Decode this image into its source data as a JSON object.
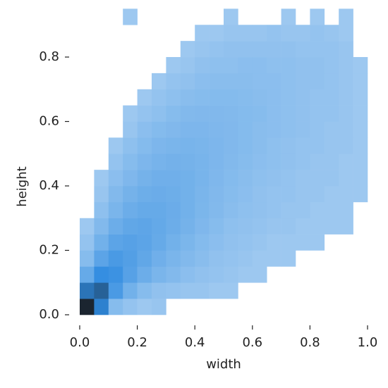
{
  "chart_data": {
    "type": "hist2d",
    "x_label": "width",
    "y_label": "height",
    "xbins": [
      0,
      0.05,
      0.1,
      0.15,
      0.2,
      0.25,
      0.3,
      0.35,
      0.4,
      0.45,
      0.5,
      0.55,
      0.6,
      0.65,
      0.7,
      0.75,
      0.8,
      0.85,
      0.9,
      0.95,
      1.0
    ],
    "ybins": [
      0,
      0.05,
      0.1,
      0.15,
      0.2,
      0.25,
      0.3,
      0.35,
      0.4,
      0.45,
      0.5,
      0.55,
      0.6,
      0.65,
      0.7,
      0.75,
      0.8,
      0.85,
      0.9,
      0.95
    ],
    "values": [
      [
        400,
        120,
        8,
        3,
        1,
        2,
        0,
        0,
        0,
        0,
        0,
        0,
        0,
        0,
        0,
        0,
        0,
        0,
        0,
        0
      ],
      [
        150,
        200,
        60,
        20,
        8,
        4,
        3,
        2,
        2,
        1,
        1,
        0,
        0,
        0,
        0,
        0,
        0,
        0,
        0,
        0
      ],
      [
        30,
        90,
        80,
        45,
        25,
        15,
        10,
        6,
        4,
        3,
        2,
        1,
        1,
        0,
        0,
        0,
        0,
        0,
        0,
        0
      ],
      [
        8,
        40,
        60,
        50,
        35,
        22,
        15,
        10,
        7,
        4,
        3,
        2,
        1,
        1,
        1,
        0,
        0,
        0,
        0,
        0
      ],
      [
        3,
        20,
        40,
        45,
        40,
        30,
        20,
        14,
        9,
        6,
        4,
        3,
        2,
        1,
        1,
        1,
        1,
        0,
        0,
        0
      ],
      [
        1,
        10,
        25,
        35,
        38,
        32,
        25,
        18,
        12,
        8,
        5,
        4,
        3,
        2,
        2,
        1,
        1,
        1,
        1,
        0
      ],
      [
        0,
        5,
        15,
        25,
        30,
        30,
        26,
        20,
        14,
        10,
        7,
        5,
        4,
        3,
        2,
        2,
        1,
        1,
        1,
        0
      ],
      [
        0,
        2,
        10,
        18,
        24,
        26,
        24,
        20,
        15,
        11,
        8,
        6,
        4,
        3,
        3,
        2,
        2,
        1,
        1,
        1
      ],
      [
        0,
        1,
        6,
        12,
        18,
        22,
        22,
        20,
        16,
        12,
        9,
        7,
        5,
        4,
        3,
        2,
        2,
        2,
        1,
        1
      ],
      [
        0,
        0,
        3,
        8,
        13,
        17,
        19,
        18,
        16,
        13,
        10,
        8,
        6,
        5,
        4,
        3,
        2,
        2,
        1,
        1
      ],
      [
        0,
        0,
        1,
        5,
        9,
        13,
        15,
        16,
        15,
        13,
        11,
        9,
        7,
        5,
        4,
        3,
        3,
        2,
        2,
        1
      ],
      [
        0,
        0,
        0,
        2,
        6,
        9,
        11,
        13,
        13,
        12,
        11,
        9,
        7,
        6,
        5,
        4,
        3,
        2,
        2,
        1
      ],
      [
        0,
        0,
        0,
        1,
        3,
        5,
        8,
        10,
        11,
        11,
        10,
        9,
        8,
        6,
        5,
        4,
        3,
        3,
        2,
        1
      ],
      [
        0,
        0,
        0,
        0,
        1,
        3,
        5,
        7,
        8,
        9,
        9,
        8,
        7,
        6,
        5,
        4,
        3,
        3,
        2,
        1
      ],
      [
        0,
        0,
        0,
        0,
        0,
        1,
        3,
        4,
        6,
        7,
        7,
        7,
        6,
        6,
        5,
        4,
        4,
        3,
        2,
        1
      ],
      [
        0,
        0,
        0,
        0,
        0,
        0,
        1,
        2,
        4,
        5,
        5,
        6,
        6,
        5,
        5,
        4,
        4,
        3,
        2,
        1
      ],
      [
        0,
        0,
        0,
        0,
        0,
        0,
        0,
        1,
        2,
        3,
        4,
        4,
        4,
        4,
        4,
        3,
        3,
        3,
        2,
        0
      ],
      [
        0,
        0,
        0,
        0,
        0,
        0,
        0,
        0,
        1,
        1,
        2,
        2,
        2,
        3,
        2,
        2,
        3,
        2,
        1,
        0
      ],
      [
        0,
        0,
        0,
        1,
        0,
        0,
        0,
        0,
        0,
        0,
        1,
        0,
        0,
        0,
        1,
        0,
        1,
        0,
        1,
        0
      ]
    ],
    "cmap": [
      "#a9cff2",
      "#2f8be0",
      "#1b2530"
    ],
    "xlim": [
      0,
      1.0
    ],
    "ylim": [
      0,
      0.95
    ],
    "xticks": [
      {
        "value": 0,
        "label": "0.0"
      },
      0.2,
      0.4,
      0.6,
      0.8,
      {
        "value": 1.0,
        "label": "1.0"
      }
    ],
    "yticks": [
      {
        "value": 0,
        "label": "0.0"
      },
      0.2,
      0.4,
      0.6,
      0.8
    ]
  }
}
